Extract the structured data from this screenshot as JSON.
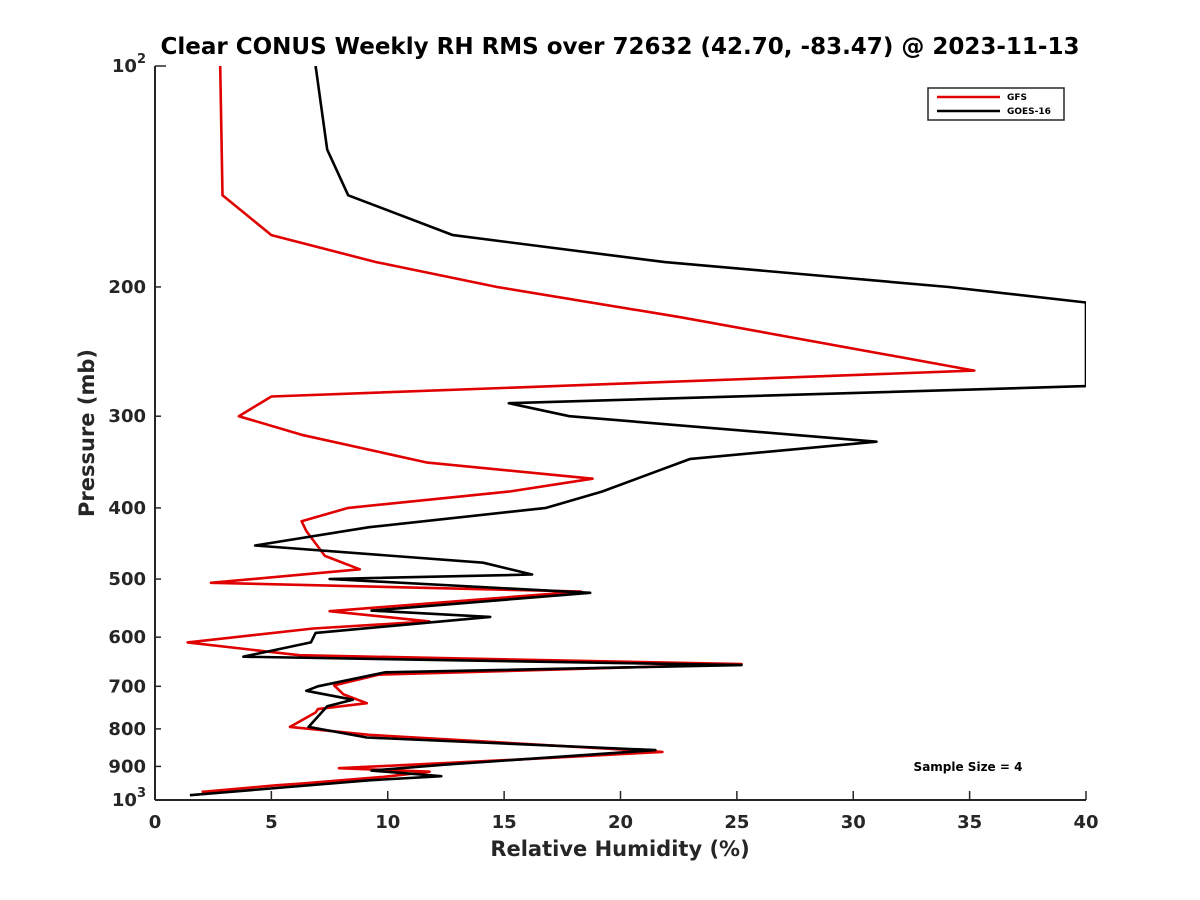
{
  "chart_data": {
    "type": "line",
    "title": "Clear CONUS Weekly RH RMS over 72632 (42.70, -83.47) @ 2023-11-13",
    "xlabel": "Relative Humidity (%)",
    "ylabel": "Pressure (mb)",
    "xlim": [
      0,
      40
    ],
    "ylim": [
      100,
      1000
    ],
    "y_scale": "log",
    "y_reversed": true,
    "grid": false,
    "legend_position": "top-right",
    "x_ticks": [
      0,
      5,
      10,
      15,
      20,
      25,
      30,
      35,
      40
    ],
    "x_tick_labels": [
      "0",
      "5",
      "10",
      "15",
      "20",
      "25",
      "30",
      "35",
      "40"
    ],
    "y_ticks": [
      200,
      300,
      400,
      500,
      600,
      700,
      800,
      900
    ],
    "y_tick_labels": [
      "200",
      "300",
      "400",
      "500",
      "600",
      "700",
      "800",
      "900"
    ],
    "y_major_ticks": [
      {
        "value": 100,
        "base": "10",
        "exp": "2"
      },
      {
        "value": 1000,
        "base": "10",
        "exp": "3"
      }
    ],
    "annotation": "Sample Size = 4",
    "series": [
      {
        "name": "GFS",
        "color": "#e00000",
        "points": [
          [
            2.8,
            100
          ],
          [
            2.9,
            150
          ],
          [
            5.0,
            170
          ],
          [
            9.5,
            185
          ],
          [
            14.7,
            200
          ],
          [
            22.6,
            220
          ],
          [
            35.2,
            260
          ],
          [
            5.0,
            282
          ],
          [
            3.6,
            300
          ],
          [
            6.3,
            318
          ],
          [
            11.7,
            347
          ],
          [
            18.8,
            365
          ],
          [
            15.2,
            380
          ],
          [
            8.3,
            400
          ],
          [
            6.3,
            417
          ],
          [
            6.5,
            430
          ],
          [
            7.3,
            465
          ],
          [
            8.8,
            485
          ],
          [
            2.4,
            506
          ],
          [
            18.3,
            520
          ],
          [
            7.5,
            553
          ],
          [
            11.8,
            571
          ],
          [
            6.8,
            584
          ],
          [
            1.4,
            610
          ],
          [
            6.2,
            635
          ],
          [
            25.2,
            653
          ],
          [
            9.6,
            675
          ],
          [
            7.7,
            698
          ],
          [
            8.1,
            718
          ],
          [
            9.1,
            738
          ],
          [
            7.0,
            752
          ],
          [
            6.9,
            760
          ],
          [
            5.8,
            795
          ],
          [
            9.2,
            815
          ],
          [
            21.8,
            860
          ],
          [
            15.8,
            880
          ],
          [
            7.9,
            905
          ],
          [
            11.8,
            915
          ],
          [
            9.8,
            930
          ],
          [
            6.3,
            950
          ],
          [
            5.2,
            955
          ],
          [
            2.0,
            975
          ]
        ]
      },
      {
        "name": "GOES-16",
        "color": "#000000",
        "points": [
          [
            6.9,
            100
          ],
          [
            7.4,
            130
          ],
          [
            8.3,
            150
          ],
          [
            12.8,
            170
          ],
          [
            21.9,
            185
          ],
          [
            34.1,
            200
          ],
          [
            40.0,
            210
          ],
          [
            40.0,
            273
          ],
          [
            15.2,
            288
          ],
          [
            17.8,
            300
          ],
          [
            31.0,
            325
          ],
          [
            23.0,
            343
          ],
          [
            20.7,
            365
          ],
          [
            19.2,
            380
          ],
          [
            16.8,
            400
          ],
          [
            9.2,
            425
          ],
          [
            4.3,
            450
          ],
          [
            14.1,
            475
          ],
          [
            16.2,
            493
          ],
          [
            7.5,
            500
          ],
          [
            18.7,
            522
          ],
          [
            9.3,
            552
          ],
          [
            14.4,
            563
          ],
          [
            6.9,
            592
          ],
          [
            6.7,
            610
          ],
          [
            3.8,
            638
          ],
          [
            25.2,
            655
          ],
          [
            9.9,
            670
          ],
          [
            7.0,
            700
          ],
          [
            6.5,
            710
          ],
          [
            8.5,
            730
          ],
          [
            7.4,
            745
          ],
          [
            6.6,
            795
          ],
          [
            9.1,
            822
          ],
          [
            21.5,
            855
          ],
          [
            19.9,
            862
          ],
          [
            12.5,
            895
          ],
          [
            9.3,
            912
          ],
          [
            12.3,
            928
          ],
          [
            9.2,
            940
          ],
          [
            1.5,
            985
          ]
        ]
      }
    ]
  }
}
